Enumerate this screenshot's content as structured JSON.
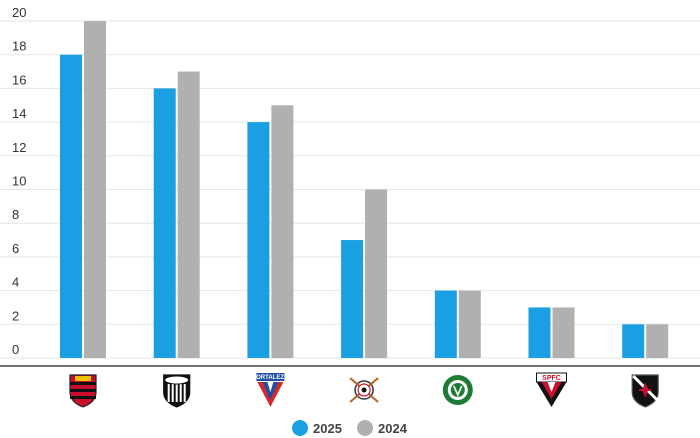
{
  "chart_data": {
    "type": "bar",
    "categories": [
      "Flamengo",
      "Ceará",
      "Fortaleza",
      "Corinthians",
      "Palmeiras",
      "São Paulo",
      "Vasco"
    ],
    "series": [
      {
        "name": "2025",
        "values": [
          18,
          16,
          14,
          7,
          4,
          3,
          2
        ],
        "color": "#1a9fe3"
      },
      {
        "name": "2024",
        "values": [
          20,
          17,
          15,
          10,
          4,
          3,
          2
        ],
        "color": "#b0b0b0"
      }
    ],
    "ylim": [
      0,
      20
    ],
    "yticks": [
      "0",
      "2",
      "4",
      "6",
      "8",
      "10",
      "12",
      "14",
      "16",
      "18",
      "20"
    ],
    "grid": true,
    "legend_position": "bottom-center",
    "category_icons": [
      "flamengo-crest-icon",
      "ceara-crest-icon",
      "fortaleza-crest-icon",
      "corinthians-crest-icon",
      "palmeiras-crest-icon",
      "sao-paulo-crest-icon",
      "vasco-crest-icon"
    ],
    "icon_texts": [
      "",
      "",
      "FORTALEZA",
      "",
      "",
      "SPFC",
      ""
    ]
  }
}
